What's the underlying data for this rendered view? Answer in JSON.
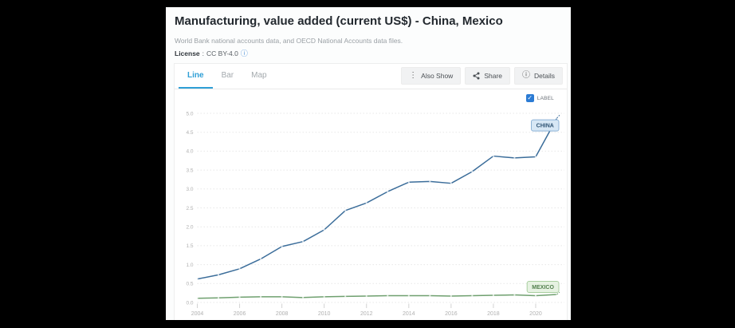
{
  "header": {
    "title": "Manufacturing, value added (current US$) - China, Mexico",
    "subtitle": "World Bank national accounts data, and OECD National Accounts data files.",
    "license": {
      "label": "License",
      "separator": ":",
      "value": "CC BY-4.0"
    }
  },
  "toolbar": {
    "tabs": [
      {
        "label": "Line",
        "active": true
      },
      {
        "label": "Bar",
        "active": false
      },
      {
        "label": "Map",
        "active": false
      }
    ],
    "buttons": [
      {
        "label": "Also Show",
        "icon": "kebab-icon"
      },
      {
        "label": "Share",
        "icon": "share-icon"
      },
      {
        "label": "Details",
        "icon": "info-icon"
      }
    ]
  },
  "chart_controls": {
    "label_toggle": {
      "label": "LABEL",
      "checked": true
    }
  },
  "icons": {
    "kebab": "⋮",
    "info": "ⓘ",
    "check": "✓"
  },
  "colors": {
    "accent_blue": "#2f9fd6",
    "checkbox_blue": "#2b7bd4",
    "grid": "#e7e7e7",
    "axis_text": "#b0b0b0",
    "tick": "#d3d3d3"
  },
  "chart_data": {
    "type": "line",
    "title": "Manufacturing, value added (current US$) - China, Mexico",
    "xlabel": "",
    "ylabel": "",
    "x": [
      2004,
      2005,
      2006,
      2007,
      2008,
      2009,
      2010,
      2011,
      2012,
      2013,
      2014,
      2015,
      2016,
      2017,
      2018,
      2019,
      2020,
      2021
    ],
    "series": [
      {
        "name": "CHINA",
        "color": "#3b6d9a",
        "label_bg": "#d7e7f5",
        "label_border": "#8cb2d6",
        "label_text": "#2b5071",
        "label_position": "below",
        "values": [
          0.62,
          0.73,
          0.89,
          1.15,
          1.48,
          1.61,
          1.92,
          2.43,
          2.63,
          2.93,
          3.18,
          3.2,
          3.15,
          3.46,
          3.87,
          3.82,
          3.85,
          4.87
        ]
      },
      {
        "name": "MEXICO",
        "color": "#6fa06f",
        "label_bg": "#e6f2e2",
        "label_border": "#a9cfa0",
        "label_text": "#53804f",
        "label_position": "above",
        "values": [
          0.11,
          0.12,
          0.14,
          0.15,
          0.15,
          0.13,
          0.15,
          0.16,
          0.17,
          0.18,
          0.18,
          0.18,
          0.17,
          0.18,
          0.19,
          0.2,
          0.18,
          0.21
        ]
      }
    ],
    "ylim": [
      0,
      5
    ],
    "ytick_step": 0.5,
    "xtick_labels": [
      "2004",
      "2006",
      "2008",
      "2010",
      "2012",
      "2014",
      "2016",
      "2018",
      "2020"
    ],
    "grid": "horizontal-dashed",
    "legend_position": "series-end-labels"
  }
}
